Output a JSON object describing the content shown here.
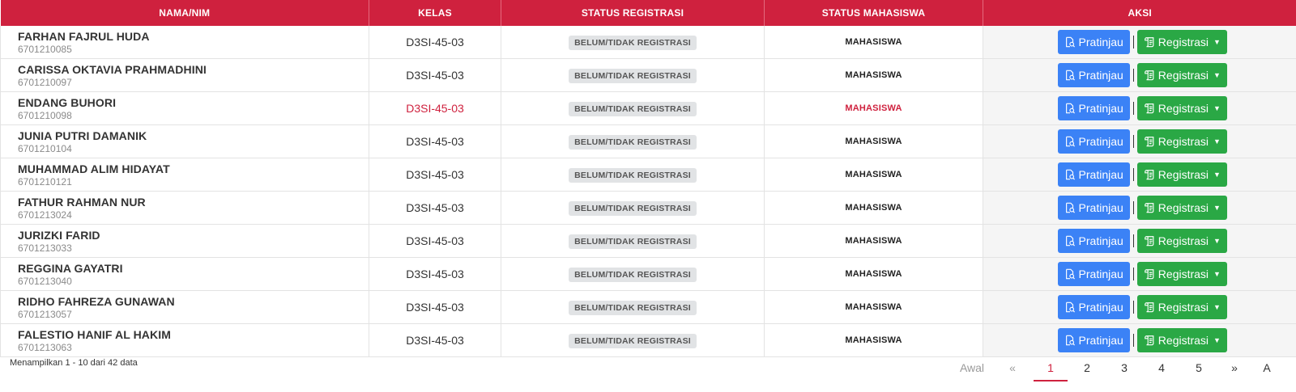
{
  "table": {
    "headers": [
      "NAMA/NIM",
      "KELAS",
      "STATUS REGISTRASI",
      "STATUS MAHASISWA",
      "AKSI"
    ],
    "rows": [
      {
        "name": "FARHAN FAJRUL HUDA",
        "nim": "6701210085",
        "kelas": "D3SI-45-03",
        "status_registrasi": "BELUM/TIDAK REGISTRASI",
        "status_mahasiswa": "MAHASISWA"
      },
      {
        "name": "CARISSA OKTAVIA PRAHMADHINI",
        "nim": "6701210097",
        "kelas": "D3SI-45-03",
        "status_registrasi": "BELUM/TIDAK REGISTRASI",
        "status_mahasiswa": "MAHASISWA"
      },
      {
        "name": "ENDANG BUHORI",
        "nim": "6701210098",
        "kelas": "D3SI-45-03",
        "status_registrasi": "BELUM/TIDAK REGISTRASI",
        "status_mahasiswa": "MAHASISWA",
        "highlight": true
      },
      {
        "name": "JUNIA PUTRI DAMANIK",
        "nim": "6701210104",
        "kelas": "D3SI-45-03",
        "status_registrasi": "BELUM/TIDAK REGISTRASI",
        "status_mahasiswa": "MAHASISWA"
      },
      {
        "name": "MUHAMMAD ALIM HIDAYAT",
        "nim": "6701210121",
        "kelas": "D3SI-45-03",
        "status_registrasi": "BELUM/TIDAK REGISTRASI",
        "status_mahasiswa": "MAHASISWA"
      },
      {
        "name": "FATHUR RAHMAN NUR",
        "nim": "6701213024",
        "kelas": "D3SI-45-03",
        "status_registrasi": "BELUM/TIDAK REGISTRASI",
        "status_mahasiswa": "MAHASISWA"
      },
      {
        "name": "JURIZKI FARID",
        "nim": "6701213033",
        "kelas": "D3SI-45-03",
        "status_registrasi": "BELUM/TIDAK REGISTRASI",
        "status_mahasiswa": "MAHASISWA"
      },
      {
        "name": "REGGINA GAYATRI",
        "nim": "6701213040",
        "kelas": "D3SI-45-03",
        "status_registrasi": "BELUM/TIDAK REGISTRASI",
        "status_mahasiswa": "MAHASISWA"
      },
      {
        "name": "RIDHO FAHREZA GUNAWAN",
        "nim": "6701213057",
        "kelas": "D3SI-45-03",
        "status_registrasi": "BELUM/TIDAK REGISTRASI",
        "status_mahasiswa": "MAHASISWA"
      },
      {
        "name": "FALESTIO HANIF AL HAKIM",
        "nim": "6701213063",
        "kelas": "D3SI-45-03",
        "status_registrasi": "BELUM/TIDAK REGISTRASI",
        "status_mahasiswa": "MAHASISWA"
      }
    ]
  },
  "actions": {
    "preview_label": "Pratinjau",
    "preview_icon": "document-search-icon",
    "register_label": "Registrasi",
    "register_icon": "scroll-icon"
  },
  "footer": {
    "info": "Menampilkan 1 - 10 dari 42 data"
  },
  "pagination": {
    "first": "Awal",
    "prev": "«",
    "pages": [
      "1",
      "2",
      "3",
      "4",
      "5"
    ],
    "active_page": "1",
    "next": "»",
    "last_partial": "A"
  },
  "colors": {
    "header_bg": "#cf213e",
    "highlight_text": "#cf213e",
    "preview_button": "#3b82f6",
    "register_button": "#2aa845",
    "badge_bg": "#e1e3e5"
  }
}
